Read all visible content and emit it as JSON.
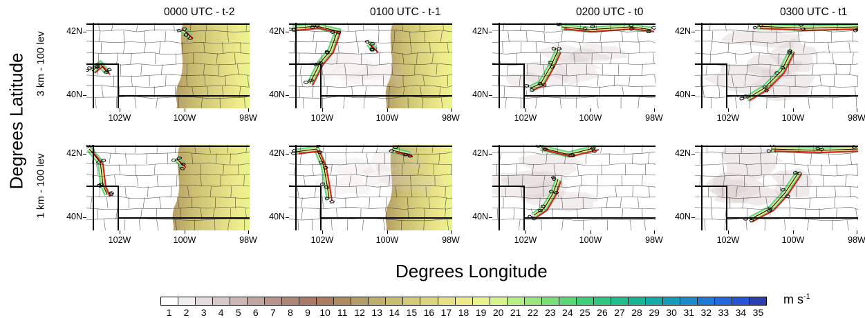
{
  "figure": {
    "column_titles": [
      "0000 UTC - t-2",
      "0100 UTC - t-1",
      "0200 UTC - t0",
      "0300 UTC - t1"
    ],
    "row_labels": [
      "3 km - 100 lev",
      "1 km - 100 lev"
    ],
    "y_axis_label": "Degrees Latitude",
    "x_axis_label": "Degrees Longitude",
    "lat_ticks": [
      "42N",
      "40N"
    ],
    "lon_ticks": [
      "102W",
      "100W",
      "98W"
    ],
    "colorbar": {
      "units_base": "m s",
      "units_exp": "-1",
      "labels": [
        "1",
        "2",
        "3",
        "4",
        "5",
        "6",
        "7",
        "8",
        "9",
        "10",
        "11",
        "12",
        "13",
        "14",
        "15",
        "16",
        "17",
        "18",
        "19",
        "20",
        "21",
        "22",
        "23",
        "24",
        "25",
        "26",
        "27",
        "28",
        "29",
        "30",
        "31",
        "32",
        "33",
        "34",
        "35"
      ],
      "colors": [
        "#ffffff",
        "#f1eeee",
        "#e4dcdc",
        "#d8cac9",
        "#cdb7b5",
        "#c3a6a1",
        "#b9948c",
        "#ae8676",
        "#a97a68",
        "#ab7c60",
        "#af8a5f",
        "#b69d66",
        "#bfae6d",
        "#c9bd72",
        "#d3ca79",
        "#dcd580",
        "#e6e087",
        "#efea8c",
        "#e9f48e",
        "#d6f48b",
        "#b9ee85",
        "#99e67e",
        "#79de78",
        "#5bd675",
        "#42ce78",
        "#2ec681",
        "#1fbe8c",
        "#16b59a",
        "#13aaa8",
        "#159cb8",
        "#1b8bc9",
        "#207ad6",
        "#2468dd",
        "#2656d7",
        "#293fae"
      ]
    }
  }
}
